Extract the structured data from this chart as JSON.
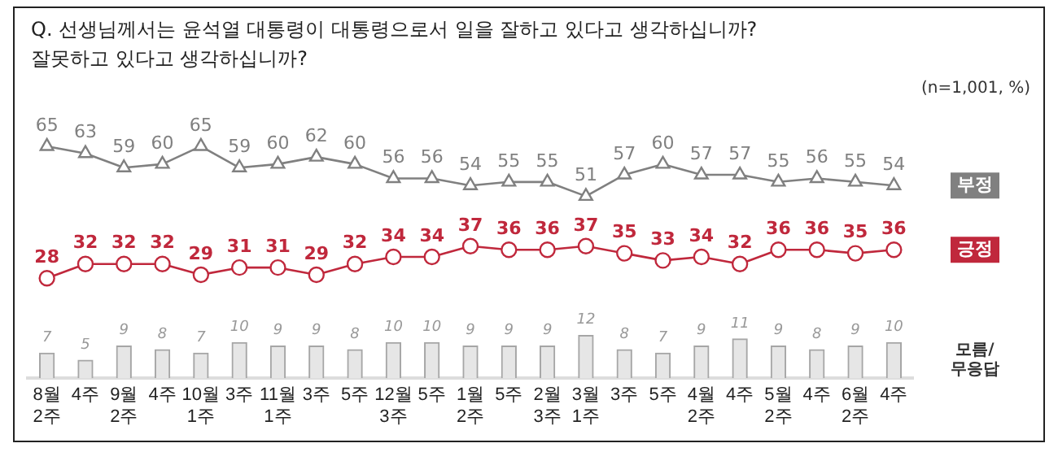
{
  "chart_data": {
    "type": "line",
    "title": "Q. 선생님께서는 윤석열 대통령이 대통령으로서 일을 잘하고 있다고 생각하십니까?\n잘못하고 있다고 생각하십니까?",
    "annotations": [
      "(n=1,001, %)"
    ],
    "categories": [
      "8월\n2주",
      "4주",
      "9월\n2주",
      "4주",
      "10월\n1주",
      "3주",
      "11월\n1주",
      "3주",
      "5주",
      "12월\n3주",
      "5주",
      "1월\n2주",
      "5주",
      "2월\n3주",
      "3월\n1주",
      "3주",
      "5주",
      "4월\n2주",
      "4주",
      "5월\n2주",
      "4주",
      "6월\n2주",
      "4주"
    ],
    "series": [
      {
        "name": "부정",
        "marker": "triangle",
        "color": "#808080",
        "values": [
          65,
          63,
          59,
          60,
          65,
          59,
          60,
          62,
          60,
          56,
          56,
          54,
          55,
          55,
          51,
          57,
          60,
          57,
          57,
          55,
          56,
          55,
          54
        ]
      },
      {
        "name": "긍정",
        "marker": "circle",
        "color": "#c0283c",
        "values": [
          28,
          32,
          32,
          32,
          29,
          31,
          31,
          29,
          32,
          34,
          34,
          37,
          36,
          36,
          37,
          35,
          33,
          34,
          32,
          36,
          36,
          35,
          36
        ]
      },
      {
        "name": "모름/\n무응답",
        "type": "bar",
        "color": "#e6e6e6",
        "values": [
          7,
          5,
          9,
          8,
          7,
          10,
          9,
          9,
          8,
          10,
          10,
          9,
          9,
          9,
          12,
          8,
          7,
          9,
          11,
          9,
          8,
          9,
          10
        ]
      }
    ],
    "data_labels": true,
    "legend": false,
    "grid": false
  }
}
